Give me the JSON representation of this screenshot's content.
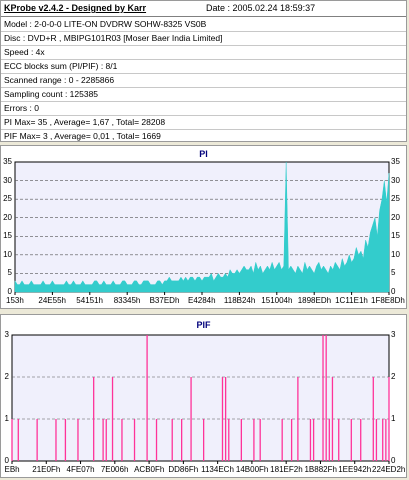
{
  "header": {
    "title": "KProbe v2.4.2 - Designed by Karr",
    "date": "Date : 2005.02.24 18:59:37"
  },
  "info_lines": [
    "Model : 2-0-0-0 LITE-ON DVDRW SOHW-8325  VS0B",
    "Disc : DVD+R , MBIPG101R03 [Moser Baer India Limited]",
    "Speed : 4x",
    "ECC blocks sum (PI/PIF) : 8/1",
    "Scanned range : 0 - 2285866",
    "Sampling count : 125385",
    "Errors : 0",
    "PI Max= 35 , Average= 1,67 , Total= 28208",
    "PIF Max= 3 , Average= 0,01 , Total= 1669"
  ],
  "colors": {
    "pi_fill": "#33cccc",
    "pif_line": "#ff3399",
    "plot_bg": "#f0f0fc",
    "title": "#00007b"
  },
  "chart_data": [
    {
      "type": "area",
      "title": "PI",
      "ylim": [
        0,
        35
      ],
      "yticks_left": [
        "35",
        "30",
        "25",
        "20",
        "15",
        "10",
        "5",
        "0"
      ],
      "yticks_right": [
        "35",
        "30",
        "25",
        "20",
        "15",
        "10",
        "5",
        "0"
      ],
      "x_tick_labels": [
        "153h",
        "24E55h",
        "54151h",
        "83345h",
        "B37EDh",
        "E4284h",
        "118B24h",
        "151004h",
        "1898EDh",
        "1C11E1h",
        "1F8E8Dh"
      ],
      "grid": true,
      "series": [
        {
          "values": [
            3,
            2,
            2,
            3,
            2,
            2,
            2,
            3,
            2,
            2,
            2,
            2,
            3,
            2,
            2,
            2,
            3,
            2,
            2,
            2,
            2,
            2,
            3,
            2,
            2,
            3,
            2,
            2,
            2,
            3,
            2,
            2,
            2,
            2,
            3,
            3,
            2,
            2,
            3,
            2,
            2,
            2,
            3,
            2,
            2,
            2,
            3,
            3,
            2,
            2,
            2,
            3,
            3,
            2,
            2,
            3,
            3,
            3,
            2,
            2,
            2,
            3,
            3,
            2,
            3,
            3,
            4,
            3,
            3,
            3,
            3,
            4,
            3,
            4,
            3,
            4,
            4,
            3,
            4,
            4,
            3,
            4,
            4,
            4,
            5,
            3,
            4,
            5,
            4,
            4,
            5,
            4,
            6,
            5,
            5,
            6,
            5,
            6,
            7,
            6,
            6,
            7,
            5,
            8,
            6,
            7,
            5,
            6,
            7,
            6,
            8,
            6,
            7,
            8,
            6,
            7,
            35,
            6,
            7,
            6,
            5,
            7,
            6,
            5,
            8,
            6,
            7,
            6,
            5,
            7,
            8,
            6,
            7,
            6,
            5,
            7,
            6,
            8,
            7,
            6,
            9,
            7,
            8,
            10,
            8,
            9,
            12,
            10,
            11,
            9,
            14,
            12,
            16,
            18,
            20,
            15,
            22,
            25,
            30,
            24,
            32
          ]
        }
      ]
    },
    {
      "type": "bar",
      "title": "PIF",
      "ylim": [
        0,
        3
      ],
      "yticks_left": [
        "3",
        "2",
        "1",
        "0"
      ],
      "yticks_right": [
        "3",
        "2",
        "1",
        "0"
      ],
      "x_tick_labels": [
        "EBh",
        "21E0Fh",
        "4FE07h",
        "7E006h",
        "ACB0Fh",
        "DD86Fh",
        "1134ECh",
        "14B00Fh",
        "181EF2h",
        "1B882Fh",
        "1EE942h",
        "224ED2h"
      ],
      "grid": true,
      "series": [
        {
          "values": [
            1,
            0,
            1,
            0,
            0,
            0,
            0,
            0,
            1,
            0,
            0,
            0,
            0,
            0,
            1,
            0,
            0,
            1,
            0,
            0,
            0,
            1,
            0,
            0,
            0,
            0,
            2,
            0,
            0,
            1,
            1,
            0,
            2,
            0,
            0,
            1,
            0,
            0,
            0,
            1,
            0,
            0,
            0,
            3,
            0,
            0,
            1,
            0,
            0,
            0,
            0,
            1,
            0,
            0,
            1,
            0,
            0,
            2,
            0,
            0,
            0,
            1,
            0,
            0,
            0,
            0,
            0,
            2,
            2,
            1,
            0,
            0,
            0,
            1,
            0,
            0,
            0,
            1,
            0,
            1,
            0,
            0,
            0,
            0,
            0,
            0,
            1,
            0,
            0,
            1,
            0,
            2,
            0,
            0,
            0,
            1,
            1,
            0,
            0,
            3,
            3,
            1,
            2,
            0,
            1,
            0,
            0,
            0,
            1,
            0,
            0,
            1,
            0,
            0,
            0,
            2,
            1,
            0,
            1,
            1,
            2
          ]
        }
      ]
    }
  ]
}
